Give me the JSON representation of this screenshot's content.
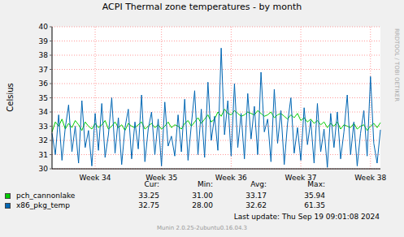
{
  "chart_data": {
    "type": "line",
    "title": "ACPI Thermal zone temperatures - by month",
    "y_label": "Celsius",
    "watermark": "RRDTOOL / TOBI OETIKER",
    "last_update": "Last update:  Thu Sep 19 09:01:08 2024",
    "footer": "Munin 2.0.25-2ubuntu0.16.04.3",
    "ylim": [
      30,
      40
    ],
    "yticks": [
      30,
      31,
      32,
      33,
      34,
      35,
      36,
      37,
      38,
      39,
      40
    ],
    "grid": true,
    "legend": "bottom",
    "categories": [
      null,
      null,
      null,
      null,
      null,
      null,
      null,
      null,
      null,
      null,
      null,
      null,
      null,
      "Week 34",
      null,
      null,
      null,
      null,
      null,
      null,
      null,
      null,
      null,
      null,
      null,
      null,
      null,
      null,
      null,
      null,
      null,
      null,
      null,
      "Week 35",
      null,
      null,
      null,
      null,
      null,
      null,
      null,
      null,
      null,
      null,
      null,
      null,
      null,
      null,
      null,
      null,
      null,
      null,
      null,
      null,
      "Week 36",
      null,
      null,
      null,
      null,
      null,
      null,
      null,
      null,
      null,
      null,
      null,
      null,
      null,
      null,
      null,
      null,
      null,
      null,
      null,
      null,
      "Week 37",
      null,
      null,
      null,
      null,
      null,
      null,
      null,
      null,
      null,
      null,
      null,
      null,
      null,
      null,
      null,
      null,
      null,
      null,
      null,
      null,
      "Week 38",
      null,
      null,
      null
    ],
    "stats_columns": [
      "Cur:",
      "Min:",
      "Avg:",
      "Max:"
    ],
    "series": [
      {
        "name": "pch_cannonlake",
        "color": "#00cc00",
        "stats": [
          "33.25",
          "31.00",
          "33.17",
          "35.94"
        ],
        "values": [
          32.6,
          33.3,
          33.0,
          33.5,
          32.8,
          33.2,
          32.9,
          33.4,
          33.1,
          32.7,
          33.3,
          33.0,
          32.8,
          33.2,
          32.9,
          33.1,
          33.4,
          32.8,
          33.0,
          33.3,
          32.9,
          33.1,
          32.7,
          33.2,
          33.0,
          32.9,
          33.1,
          33.3,
          32.8,
          33.0,
          33.2,
          32.9,
          33.1,
          32.8,
          33.0,
          33.3,
          32.9,
          33.1,
          33.0,
          32.8,
          33.2,
          33.4,
          33.0,
          33.3,
          33.6,
          33.2,
          33.5,
          33.8,
          33.3,
          33.5,
          34.0,
          33.7,
          34.2,
          33.9,
          33.8,
          34.1,
          33.9,
          33.7,
          33.8,
          34.0,
          33.9,
          33.8,
          34.1,
          33.9,
          33.7,
          33.8,
          34.0,
          33.6,
          33.8,
          33.9,
          33.7,
          33.5,
          33.8,
          33.6,
          33.9,
          33.4,
          33.6,
          33.3,
          33.5,
          33.2,
          33.4,
          33.1,
          33.3,
          32.9,
          33.2,
          33.0,
          33.3,
          32.8,
          33.1,
          33.0,
          32.9,
          33.2,
          32.8,
          33.0,
          33.1,
          32.7,
          33.0,
          33.2,
          32.9,
          33.25
        ]
      },
      {
        "name": "x86_pkg_temp",
        "color": "#0066b3",
        "stats": [
          "32.75",
          "28.00",
          "32.62",
          "61.35"
        ],
        "values": [
          32.5,
          31.0,
          33.8,
          30.6,
          32.9,
          34.5,
          31.2,
          33.0,
          30.4,
          34.8,
          31.5,
          32.7,
          30.2,
          33.9,
          31.3,
          34.6,
          30.8,
          32.4,
          35.0,
          31.1,
          33.6,
          30.3,
          32.9,
          34.2,
          30.7,
          33.3,
          31.4,
          35.2,
          30.5,
          32.8,
          34.0,
          31.0,
          33.5,
          30.2,
          34.7,
          31.6,
          32.3,
          30.9,
          33.8,
          31.2,
          34.9,
          30.6,
          33.1,
          35.5,
          31.0,
          34.2,
          30.8,
          36.1,
          32.0,
          33.7,
          31.3,
          38.5,
          32.4,
          34.8,
          30.9,
          36.0,
          31.5,
          33.9,
          30.7,
          35.3,
          32.1,
          34.4,
          31.0,
          36.8,
          32.6,
          33.5,
          30.5,
          35.6,
          31.8,
          34.1,
          30.3,
          33.2,
          35.0,
          31.1,
          32.9,
          30.6,
          34.3,
          31.7,
          33.4,
          30.4,
          34.6,
          31.2,
          32.8,
          30.1,
          33.9,
          31.5,
          34.0,
          30.7,
          32.6,
          35.2,
          31.0,
          33.3,
          30.2,
          32.5,
          34.1,
          30.9,
          36.5,
          31.8,
          30.4,
          32.75
        ]
      }
    ]
  }
}
